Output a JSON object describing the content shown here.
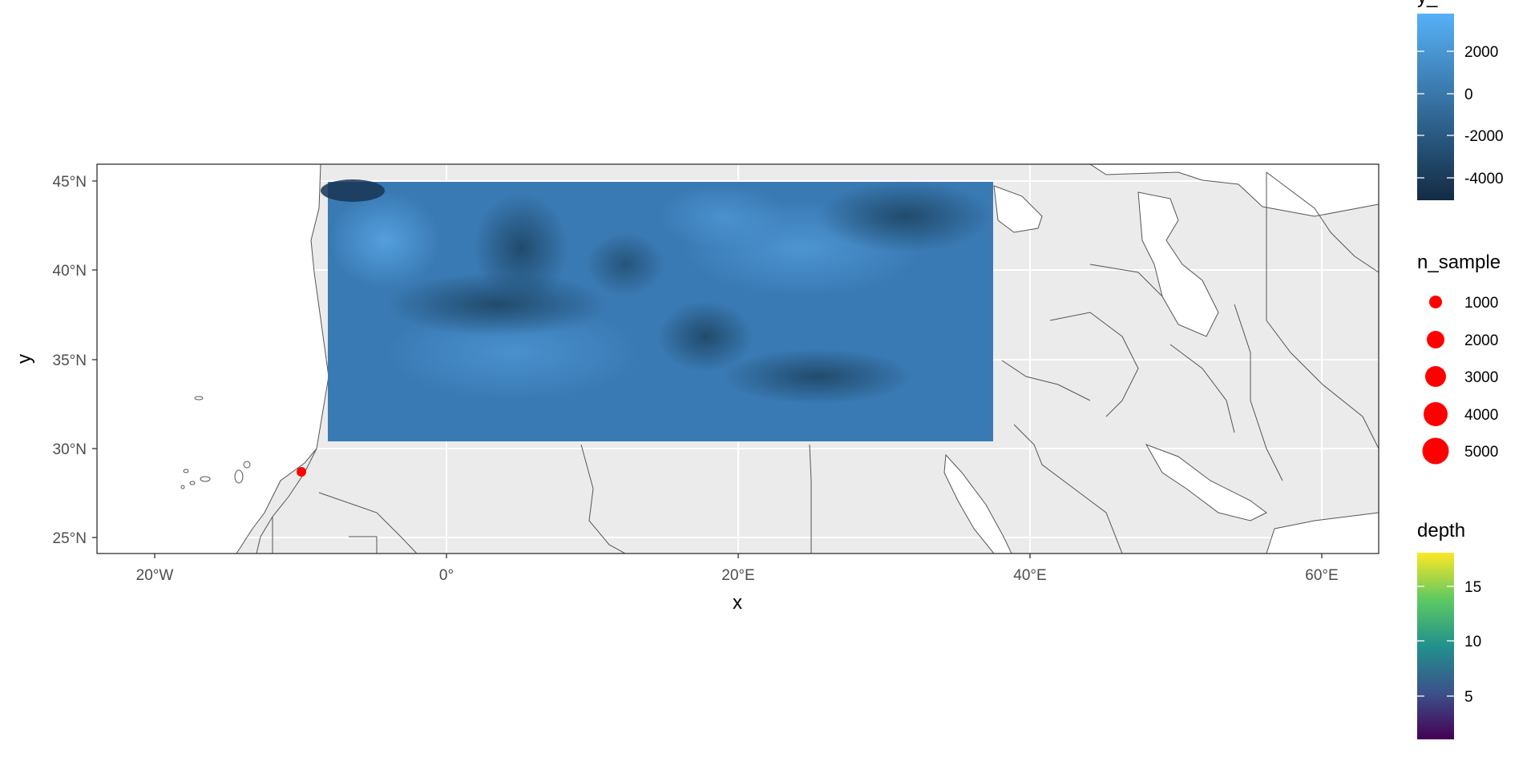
{
  "axes": {
    "x_label": "x",
    "y_label": "y",
    "x_ticks": [
      "20°W",
      "0°",
      "20°E",
      "40°E",
      "60°E"
    ],
    "y_ticks": [
      "45°N",
      "40°N",
      "35°N",
      "30°N",
      "25°N"
    ]
  },
  "legend": {
    "topo": {
      "title": "y_",
      "labels": [
        "2000",
        "0",
        "-2000",
        "-4000"
      ]
    },
    "n_sample": {
      "title": "n_sample",
      "labels": [
        "1000",
        "2000",
        "3000",
        "4000",
        "5000"
      ]
    },
    "depth": {
      "title": "depth",
      "labels": [
        "15",
        "10",
        "5"
      ]
    }
  },
  "chart_data": {
    "type": "scatter",
    "map_extent": {
      "lon": [
        -24,
        64
      ],
      "lat": [
        24,
        46.5
      ]
    },
    "raster": {
      "variable": "bathymetry/topography",
      "lon": [
        -8,
        37.5
      ],
      "lat": [
        30.3,
        45
      ]
    },
    "points": [
      {
        "lon": -10,
        "lat": 28.7,
        "n_sample": 1000,
        "color": "#ff0000"
      }
    ],
    "colors": {
      "panel_bg": "#ebebeb",
      "land": "#ffffff",
      "point": "#ff0000",
      "topo_high": "#56b1f7",
      "topo_low": "#132b43"
    }
  }
}
